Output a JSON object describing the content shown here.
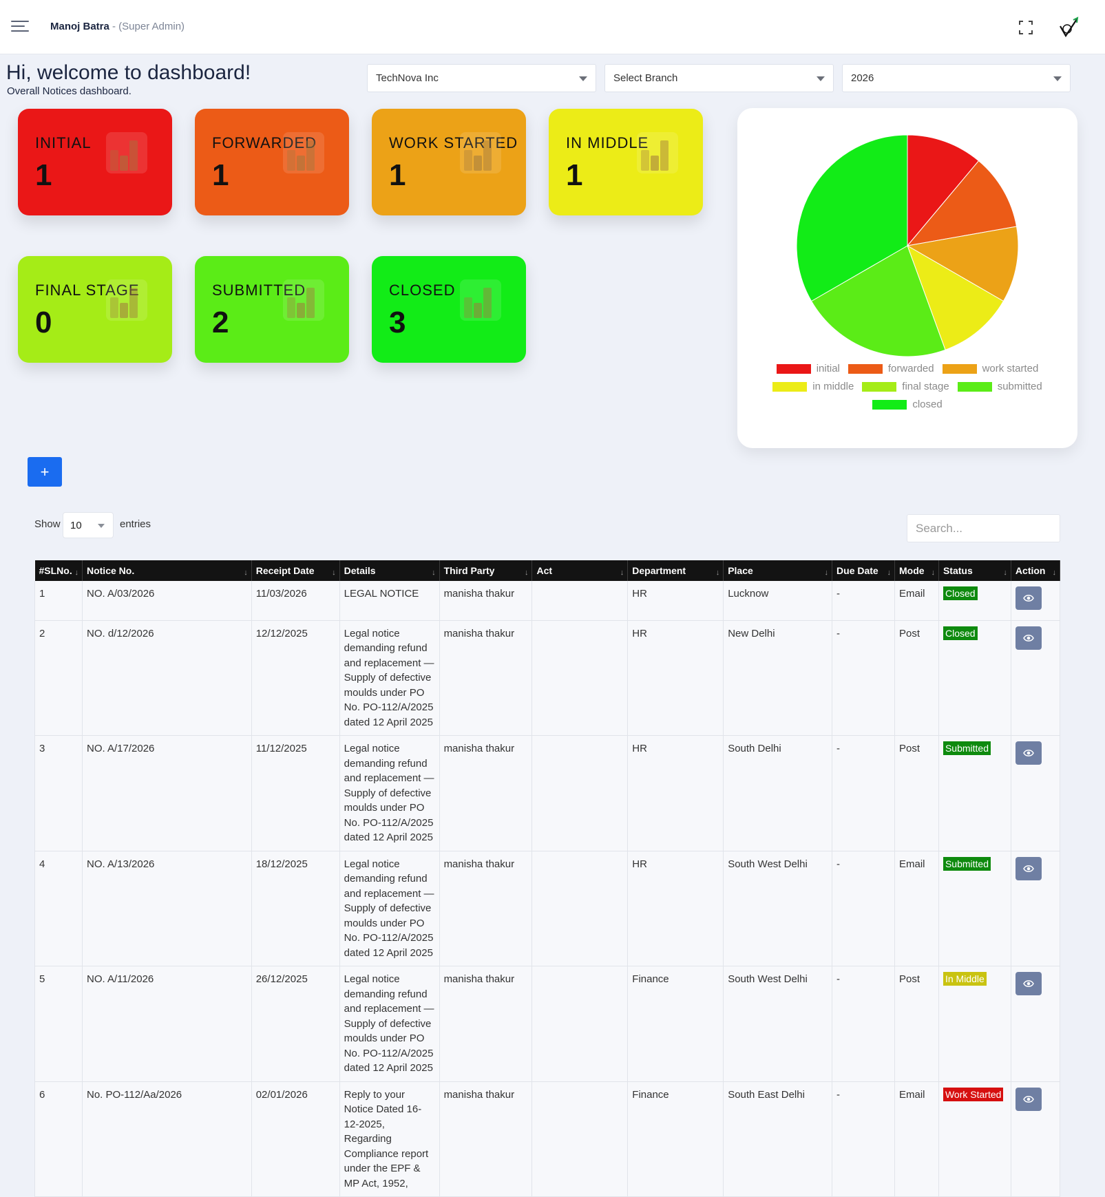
{
  "header": {
    "user_name": "Manoj Batra",
    "user_role": "- (Super Admin)"
  },
  "welcome": {
    "title": "Hi, welcome to dashboard!",
    "subtitle": "Overall Notices dashboard."
  },
  "filters": {
    "company": "TechNova Inc",
    "branch": "Select Branch",
    "year": "2026"
  },
  "cards": [
    {
      "label": "INITIAL",
      "count": "1",
      "color": "#ea1717"
    },
    {
      "label": "FORWARDED",
      "count": "1",
      "color": "#ec5b17"
    },
    {
      "label": "WORK STARTED",
      "count": "1",
      "color": "#eca217"
    },
    {
      "label": "IN MIDDLE",
      "count": "1",
      "color": "#ecec17"
    },
    {
      "label": "FINAL STAGE",
      "count": "0",
      "color": "#a5ec17"
    },
    {
      "label": "SUBMITTED",
      "count": "2",
      "color": "#5bec17"
    },
    {
      "label": "CLOSED",
      "count": "3",
      "color": "#12ec17"
    }
  ],
  "chart_data": {
    "type": "pie",
    "categories": [
      "initial",
      "forwarded",
      "work started",
      "in middle",
      "final stage",
      "submitted",
      "closed"
    ],
    "values": [
      1,
      1,
      1,
      1,
      0,
      2,
      3
    ],
    "colors": [
      "#ea1717",
      "#ec5b17",
      "#eca217",
      "#ecec17",
      "#a5ec17",
      "#5bec17",
      "#12ec17"
    ],
    "legend_position": "bottom"
  },
  "table_controls": {
    "add_label": "+",
    "show_label": "Show",
    "entries_value": "10",
    "entries_label": "entries",
    "search_placeholder": "Search..."
  },
  "table": {
    "columns": [
      "#SLNo.",
      "Notice No.",
      "Receipt Date",
      "Details",
      "Third Party",
      "Act",
      "Department",
      "Place",
      "Due Date",
      "Mode",
      "Status",
      "Action"
    ],
    "rows": [
      {
        "sl": "1",
        "notice": "NO. A/03/2026",
        "date": "11/03/2026",
        "details": "LEGAL NOTICE",
        "party": "manisha thakur",
        "act": "",
        "dept": "HR",
        "place": "Lucknow",
        "due": "-",
        "mode": "Email",
        "status": "Closed",
        "status_color": "#0e8a0e"
      },
      {
        "sl": "2",
        "notice": "NO. d/12/2026",
        "date": "12/12/2025",
        "details": "Legal notice demanding refund and replacement — Supply of defective moulds under PO No. PO-112/A/2025 dated 12 April 2025",
        "party": "manisha thakur",
        "act": "",
        "dept": "HR",
        "place": "New Delhi",
        "due": "-",
        "mode": "Post",
        "status": "Closed",
        "status_color": "#0e8a0e"
      },
      {
        "sl": "3",
        "notice": "NO. A/17/2026",
        "date": "11/12/2025",
        "details": "Legal notice demanding refund and replacement — Supply of defective moulds under PO No. PO-112/A/2025 dated 12 April 2025",
        "party": "manisha thakur",
        "act": "",
        "dept": "HR",
        "place": "South Delhi",
        "due": "-",
        "mode": "Post",
        "status": "Submitted",
        "status_color": "#0e8a0e"
      },
      {
        "sl": "4",
        "notice": "NO. A/13/2026",
        "date": "18/12/2025",
        "details": "Legal notice demanding refund and replacement — Supply of defective moulds under PO No. PO-112/A/2025 dated 12 April 2025",
        "party": "manisha thakur",
        "act": "",
        "dept": "HR",
        "place": "South West Delhi",
        "due": "-",
        "mode": "Email",
        "status": "Submitted",
        "status_color": "#0e8a0e"
      },
      {
        "sl": "5",
        "notice": "NO. A/11/2026",
        "date": "26/12/2025",
        "details": "Legal notice demanding refund and replacement — Supply of defective moulds under PO No. PO-112/A/2025 dated 12 April 2025",
        "party": "manisha thakur",
        "act": "",
        "dept": "Finance",
        "place": "South West Delhi",
        "due": "-",
        "mode": "Post",
        "status": "In Middle",
        "status_color": "#c9c311"
      },
      {
        "sl": "6",
        "notice": "No. PO-112/Aa/2026",
        "date": "02/01/2026",
        "details": "Reply to your Notice Dated 16-12-2025, Regarding Compliance report under the EPF & MP Act, 1952,",
        "party": "manisha thakur",
        "act": "",
        "dept": "Finance",
        "place": "South East Delhi",
        "due": "-",
        "mode": "Email",
        "status": "Work Started",
        "status_color": "#d60f0f"
      }
    ]
  }
}
